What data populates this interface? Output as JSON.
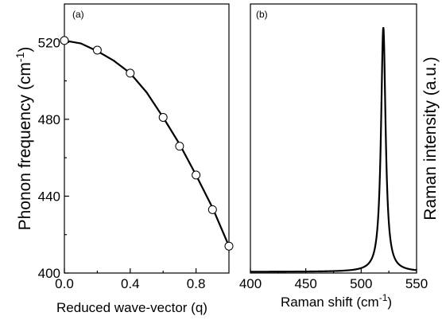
{
  "chart_data": [
    {
      "panel": "(a)",
      "type": "scatter",
      "xlabel": "Reduced wave-vector (q)",
      "ylabel": "Phonon frequency (cm",
      "ylabel_sup": "-1",
      "ylabel_close": ")",
      "xlim": [
        0.0,
        1.0
      ],
      "ylim": [
        400,
        540
      ],
      "xticks": [
        0.0,
        0.4,
        0.8
      ],
      "xtick_labels": [
        "0.0",
        "0.4",
        "0.8"
      ],
      "yticks": [
        400,
        440,
        480,
        520
      ],
      "ytick_labels": [
        "400",
        "440",
        "480",
        "520"
      ],
      "series": [
        {
          "style": "open-circles",
          "x": [
            0.0,
            0.2,
            0.4,
            0.6,
            0.7,
            0.8,
            0.9,
            1.0
          ],
          "y": [
            521,
            516,
            504,
            481,
            466,
            451,
            433,
            414
          ]
        },
        {
          "style": "fit-line",
          "x": [
            0.0,
            0.1,
            0.2,
            0.3,
            0.4,
            0.5,
            0.6,
            0.7,
            0.8,
            0.9,
            1.0
          ],
          "y": [
            521,
            519.5,
            515.5,
            510.5,
            504,
            494,
            481,
            467,
            451,
            434,
            414
          ]
        }
      ]
    },
    {
      "panel": "(b)",
      "type": "line",
      "xlabel": "Raman shift (cm",
      "xlabel_sup": "-1",
      "xlabel_close": ")",
      "ylabel": "Raman intensity (a.u.)",
      "xlim": [
        400,
        550
      ],
      "xticks": [
        400,
        450,
        500,
        550
      ],
      "xtick_labels": [
        "400",
        "450",
        "500",
        "550"
      ],
      "peak_center": 520,
      "peak_hwhm": 2.5,
      "baseline": 0.005,
      "ylim": [
        0,
        1.1
      ]
    }
  ]
}
